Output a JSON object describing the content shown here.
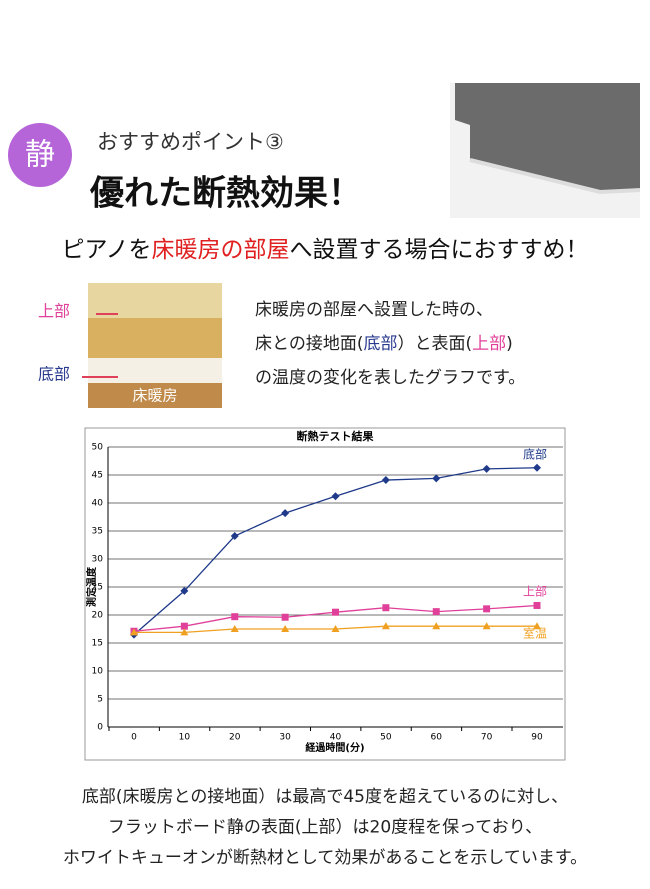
{
  "badge": "静",
  "header": {
    "kicker": "おすすめポイント③",
    "title": "優れた断熱効果！"
  },
  "headline": [
    "ピアノを",
    "床暖房の部屋",
    "へ設置する場合におすすめ！"
  ],
  "photo": {
    "top_label": "上部",
    "bottom_label": "底部",
    "caption": "床暖房"
  },
  "description": [
    [
      "床暖房の部屋へ設置した時の、"
    ],
    [
      "床との接地面(",
      "底部",
      "）と表面(",
      "上部",
      ")"
    ],
    [
      "の温度の変化を表したグラフです。"
    ]
  ],
  "chart_data": {
    "type": "line",
    "title": "断熱テスト結果",
    "x_label": "経過時間(分)",
    "y_label": "測定温度",
    "categories": [
      0,
      10,
      20,
      30,
      40,
      50,
      60,
      70,
      90
    ],
    "series": [
      {
        "name": "底部",
        "color": "#1f3a8a",
        "values": [
          16.5,
          24.3,
          34.1,
          38.2,
          41.2,
          44.1,
          44.4,
          46.1,
          46.3
        ]
      },
      {
        "name": "上部",
        "color": "#e0409a",
        "values": [
          17.1,
          18.0,
          19.7,
          19.6,
          20.5,
          21.3,
          20.6,
          21.1,
          21.7
        ]
      },
      {
        "name": "室温",
        "color": "#f0a020",
        "values": [
          16.9,
          16.9,
          17.5,
          17.5,
          17.5,
          18.0,
          18.0,
          18.0,
          18.0
        ]
      }
    ],
    "ylim": [
      0,
      50
    ],
    "yticks": [
      0,
      5,
      10,
      15,
      20,
      25,
      30,
      35,
      40,
      45,
      50
    ],
    "grid": true
  },
  "footer": [
    "底部(床暖房との接地面）は最高で45度を超えているのに対し、",
    "フラットボード静の表面(上部）は20度程を保っており、",
    "ホワイトキューオンが断熱材として効果があることを示しています。"
  ]
}
